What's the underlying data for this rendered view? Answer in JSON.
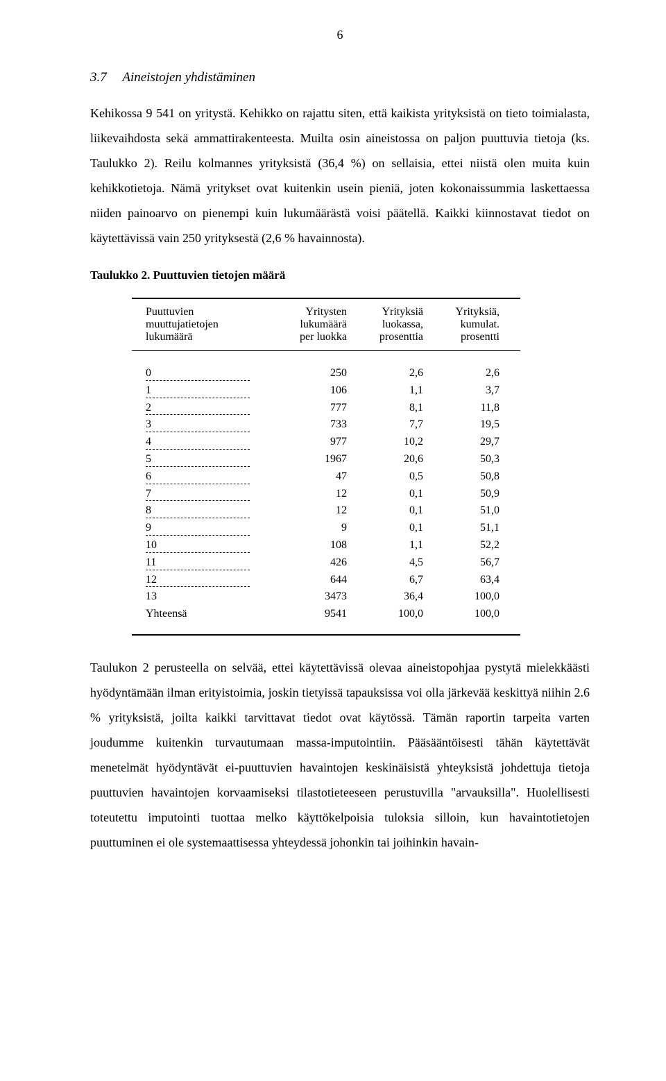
{
  "page_number": "6",
  "section": {
    "number": "3.7",
    "title": "Aineistojen yhdistäminen"
  },
  "para1": "Kehikossa 9 541 on yritystä. Kehikko on rajattu siten, että kaikista yrityksistä on tieto toimialasta, liikevaihdosta sekä ammattirakenteesta. Muilta osin aineistossa on paljon puuttuvia tietoja (ks. Taulukko 2). Reilu kolmannes yrityksistä (36,4 %) on sellaisia, ettei niistä olen muita kuin kehikkotietoja. Nämä yritykset ovat kuitenkin usein pieniä, joten kokonaissummia laskettaessa niiden painoarvo on pienempi kuin lukumäärästä voisi päätellä. Kaikki kiinnostavat tiedot on käytettävissä vain 250 yrityksestä (2,6 % havainnosta).",
  "table_caption": "Taulukko 2. Puuttuvien tietojen määrä",
  "table": {
    "header": {
      "c0a": "Puuttuvien",
      "c0b": "muuttujatietojen",
      "c0c": "lukumäärä",
      "c1a": "Yritysten",
      "c1b": "lukumäärä",
      "c1c": "per luokka",
      "c2a": "Yrityksiä",
      "c2b": "luokassa,",
      "c2c": "prosenttia",
      "c3a": "Yrityksiä,",
      "c3b": "kumulat.",
      "c3c": "prosentti"
    },
    "rows": [
      {
        "label": "0",
        "c1": "250",
        "c2": "2,6",
        "c3": "2,6",
        "dashed": true
      },
      {
        "label": "1",
        "c1": "106",
        "c2": "1,1",
        "c3": "3,7",
        "dashed": true
      },
      {
        "label": "2",
        "c1": "777",
        "c2": "8,1",
        "c3": "11,8",
        "dashed": true
      },
      {
        "label": "3",
        "c1": "733",
        "c2": "7,7",
        "c3": "19,5",
        "dashed": true
      },
      {
        "label": "4",
        "c1": "977",
        "c2": "10,2",
        "c3": "29,7",
        "dashed": true
      },
      {
        "label": "5",
        "c1": "1967",
        "c2": "20,6",
        "c3": "50,3",
        "dashed": true
      },
      {
        "label": "6",
        "c1": "47",
        "c2": "0,5",
        "c3": "50,8",
        "dashed": true
      },
      {
        "label": "7",
        "c1": "12",
        "c2": "0,1",
        "c3": "50,9",
        "dashed": true
      },
      {
        "label": "8",
        "c1": "12",
        "c2": "0,1",
        "c3": "51,0",
        "dashed": true
      },
      {
        "label": "9",
        "c1": "9",
        "c2": "0,1",
        "c3": "51,1",
        "dashed": true
      },
      {
        "label": "10",
        "c1": "108",
        "c2": "1,1",
        "c3": "52,2",
        "dashed": true
      },
      {
        "label": "11",
        "c1": "426",
        "c2": "4,5",
        "c3": "56,7",
        "dashed": true
      },
      {
        "label": "12",
        "c1": "644",
        "c2": "6,7",
        "c3": "63,4",
        "dashed": true
      },
      {
        "label": "13",
        "c1": "3473",
        "c2": "36,4",
        "c3": "100,0",
        "dashed": false
      },
      {
        "label": "Yhteensä",
        "c1": "9541",
        "c2": "100,0",
        "c3": "100,0",
        "dashed": false
      }
    ]
  },
  "para2": "Taulukon 2 perusteella on selvää, ettei käytettävissä olevaa aineistopohjaa pystytä mielekkäästi hyödyntämään ilman erityistoimia, joskin tietyissä tapauksissa voi olla järkevää keskittyä niihin 2.6 % yrityksistä, joilta kaikki tarvittavat tiedot ovat käytössä. Tämän raportin tarpeita varten joudumme kuitenkin turvautumaan massa-imputointiin. Pääsääntöisesti tähän käytettävät menetelmät hyödyntävät ei-puuttuvien havaintojen keskinäisistä yhteyksistä johdettuja tietoja puuttuvien havaintojen korvaamiseksi tilastotieteeseen perustuvilla \"arvauksilla\". Huolellisesti toteutettu imputointi tuottaa melko käyttökelpoisia tuloksia silloin, kun havaintotietojen puuttuminen ei ole systemaattisessa yhteydessä johonkin tai joihinkin havain-"
}
